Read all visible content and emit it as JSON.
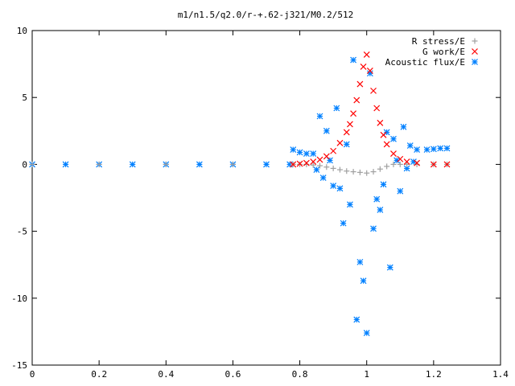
{
  "chart_data": {
    "type": "scatter",
    "title": "m1/n1.5/q2.0/r-+.62-j321/M0.2/512",
    "xlabel": "",
    "ylabel": "",
    "xlim": [
      0,
      1.4
    ],
    "ylim": [
      -15,
      10
    ],
    "grid": false,
    "legend_position": "top-right",
    "x_ticks": [
      0,
      0.2,
      0.4,
      0.6,
      0.8,
      1,
      1.2,
      1.4
    ],
    "x_tick_labels": [
      "0",
      "0.2",
      "0.4",
      "0.6",
      "0.8",
      "1",
      "1.2",
      "1.4"
    ],
    "y_ticks": [
      10,
      5,
      0,
      -5,
      -10,
      -15
    ],
    "y_tick_labels": [
      "10",
      "5",
      "0",
      "-5",
      "-10",
      "-15"
    ],
    "series": [
      {
        "name": "R stress/E",
        "marker": "+",
        "color": "#a0a0a0",
        "points": [
          [
            0,
            0
          ],
          [
            0.2,
            0
          ],
          [
            0.4,
            0
          ],
          [
            0.6,
            0
          ],
          [
            0.78,
            0
          ],
          [
            0.8,
            0
          ],
          [
            0.82,
            0
          ],
          [
            0.84,
            -0.05
          ],
          [
            0.86,
            -0.1
          ],
          [
            0.88,
            -0.2
          ],
          [
            0.9,
            -0.3
          ],
          [
            0.92,
            -0.4
          ],
          [
            0.94,
            -0.5
          ],
          [
            0.96,
            -0.55
          ],
          [
            0.98,
            -0.6
          ],
          [
            1.0,
            -0.65
          ],
          [
            1.02,
            -0.55
          ],
          [
            1.04,
            -0.35
          ],
          [
            1.06,
            -0.15
          ],
          [
            1.08,
            0
          ],
          [
            1.1,
            0
          ],
          [
            1.12,
            0
          ],
          [
            1.15,
            0
          ],
          [
            1.2,
            0
          ],
          [
            1.24,
            0
          ]
        ]
      },
      {
        "name": "G work/E",
        "marker": "x",
        "color": "#ff0000",
        "points": [
          [
            0.78,
            0
          ],
          [
            0.8,
            0.05
          ],
          [
            0.82,
            0.1
          ],
          [
            0.84,
            0.2
          ],
          [
            0.86,
            0.35
          ],
          [
            0.88,
            0.6
          ],
          [
            0.9,
            1.0
          ],
          [
            0.92,
            1.6
          ],
          [
            0.94,
            2.4
          ],
          [
            0.95,
            3.0
          ],
          [
            0.96,
            3.8
          ],
          [
            0.97,
            4.8
          ],
          [
            0.98,
            6.0
          ],
          [
            0.99,
            7.3
          ],
          [
            1.0,
            8.2
          ],
          [
            1.01,
            7.0
          ],
          [
            1.02,
            5.5
          ],
          [
            1.03,
            4.2
          ],
          [
            1.04,
            3.1
          ],
          [
            1.05,
            2.2
          ],
          [
            1.06,
            1.5
          ],
          [
            1.08,
            0.8
          ],
          [
            1.1,
            0.4
          ],
          [
            1.12,
            0.2
          ],
          [
            1.15,
            0.1
          ],
          [
            1.2,
            0
          ],
          [
            1.24,
            0
          ]
        ]
      },
      {
        "name": "Acoustic flux/E",
        "marker": "*",
        "color": "#0080ff",
        "points": [
          [
            0,
            0
          ],
          [
            0.1,
            0
          ],
          [
            0.2,
            0
          ],
          [
            0.3,
            0
          ],
          [
            0.4,
            0
          ],
          [
            0.5,
            0
          ],
          [
            0.6,
            0
          ],
          [
            0.7,
            0
          ],
          [
            0.77,
            0
          ],
          [
            0.78,
            1.1
          ],
          [
            0.8,
            0.9
          ],
          [
            0.82,
            0.8
          ],
          [
            0.84,
            0.8
          ],
          [
            0.85,
            -0.4
          ],
          [
            0.86,
            3.6
          ],
          [
            0.87,
            -1.0
          ],
          [
            0.88,
            2.5
          ],
          [
            0.89,
            0.3
          ],
          [
            0.9,
            -1.6
          ],
          [
            0.91,
            4.2
          ],
          [
            0.92,
            -1.8
          ],
          [
            0.93,
            -4.4
          ],
          [
            0.94,
            1.5
          ],
          [
            0.95,
            -3.0
          ],
          [
            0.96,
            7.8
          ],
          [
            0.97,
            -11.6
          ],
          [
            0.98,
            -7.3
          ],
          [
            0.99,
            -8.7
          ],
          [
            1.0,
            -12.6
          ],
          [
            1.01,
            6.8
          ],
          [
            1.02,
            -4.8
          ],
          [
            1.03,
            -2.6
          ],
          [
            1.04,
            -3.4
          ],
          [
            1.05,
            -1.5
          ],
          [
            1.06,
            2.4
          ],
          [
            1.07,
            -7.7
          ],
          [
            1.08,
            1.9
          ],
          [
            1.09,
            0.3
          ],
          [
            1.1,
            -2.0
          ],
          [
            1.11,
            2.8
          ],
          [
            1.12,
            -0.3
          ],
          [
            1.13,
            1.4
          ],
          [
            1.14,
            0.2
          ],
          [
            1.15,
            1.1
          ],
          [
            1.18,
            1.1
          ],
          [
            1.2,
            1.15
          ],
          [
            1.22,
            1.2
          ],
          [
            1.24,
            1.2
          ]
        ]
      }
    ]
  }
}
